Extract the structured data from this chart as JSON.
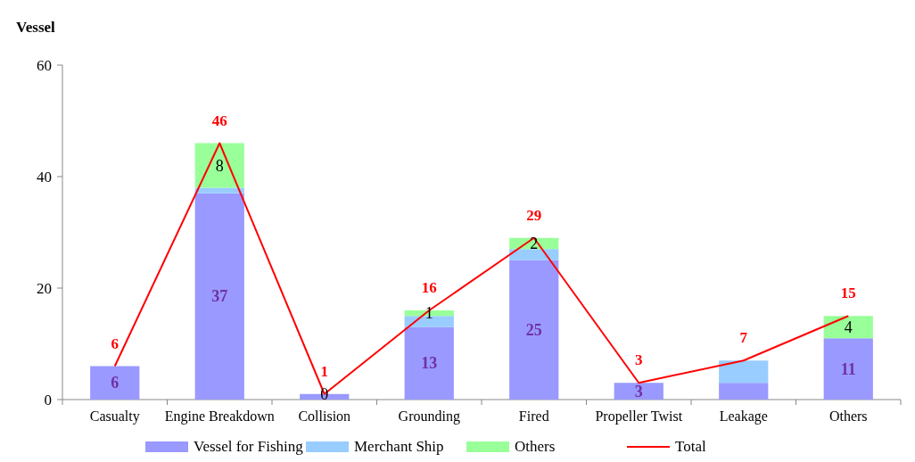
{
  "chart_data": {
    "type": "bar",
    "stacked": true,
    "ylabel": "Vessel",
    "categories": [
      "Casualty",
      "Engine Breakdown",
      "Collision",
      "Grounding",
      "Fired",
      "Propeller Twist",
      "Leakage",
      "Others"
    ],
    "series": [
      {
        "name": "Vessel for Fishing",
        "color": "#9999ff",
        "values": [
          6,
          37,
          1,
          13,
          25,
          3,
          3,
          11
        ],
        "value_labels": [
          "6",
          "37",
          null,
          "13",
          "25",
          "3",
          null,
          "11"
        ]
      },
      {
        "name": "Merchant Ship",
        "color": "#99ccff",
        "values": [
          0,
          1,
          0,
          2,
          2,
          0,
          4,
          0
        ]
      },
      {
        "name": "Others",
        "color": "#99ff99",
        "values": [
          0,
          8,
          0,
          1,
          2,
          0,
          0,
          4
        ],
        "value_labels": [
          null,
          "8",
          "0",
          "1",
          "2",
          null,
          null,
          "4"
        ]
      },
      {
        "name": "Total",
        "type": "line",
        "color": "#ff0000",
        "values": [
          6,
          46,
          1,
          16,
          29,
          3,
          7,
          15
        ],
        "data_labels": true
      }
    ],
    "ylim": [
      0,
      60
    ],
    "yticks": [
      0,
      20,
      40,
      60
    ],
    "grid": false,
    "legend": "bottom"
  }
}
